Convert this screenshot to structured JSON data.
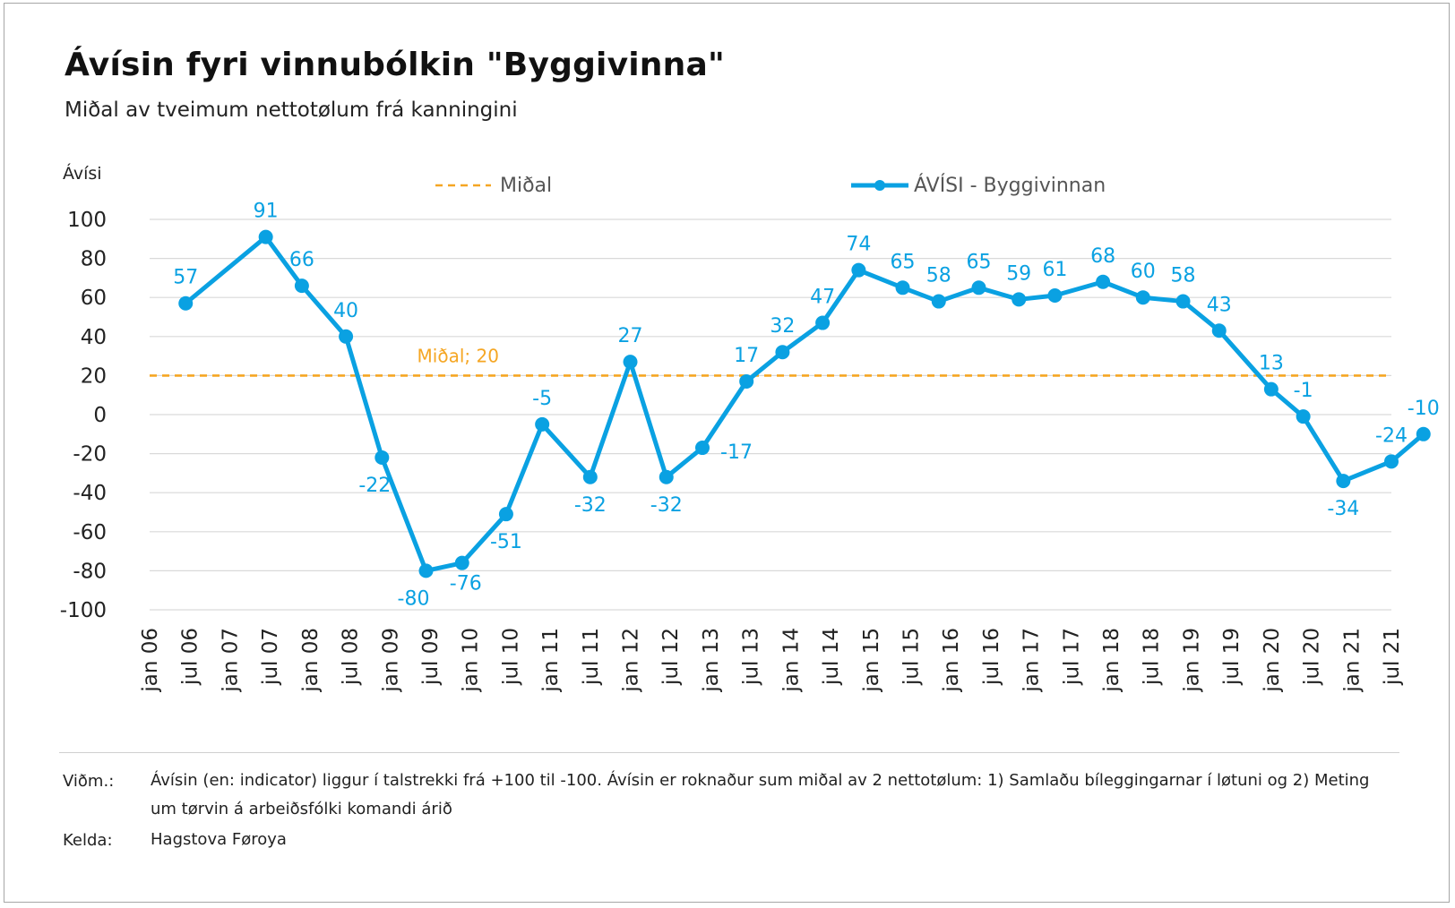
{
  "header": {
    "title": "Ávísin fyri vinnubólkin \"Byggivinna\"",
    "subtitle": "Miðal av tveimum nettotølum frá kanningini"
  },
  "chart_data": {
    "type": "line",
    "title": "Ávísin fyri vinnubólkin \"Byggivinna\"",
    "subtitle": "Miðal av tveimum nettotølum frá kanningini",
    "ylabel": "Ávísi",
    "xlabel": "",
    "ylim": [
      -100,
      100
    ],
    "yticks": [
      100,
      80,
      60,
      40,
      20,
      0,
      -20,
      -40,
      -60,
      -80,
      -100
    ],
    "grid": true,
    "legend_position": "top",
    "categories": [
      "jan 06",
      "jul 06",
      "jan 07",
      "jul 07",
      "jan 08",
      "jul 08",
      "jan 09",
      "jul 09",
      "jan 10",
      "jul 10",
      "jan 11",
      "jul 11",
      "jan 12",
      "jul 12",
      "jan 13",
      "jul 13",
      "jan 14",
      "jul 14",
      "jan 15",
      "jul 15",
      "jan 16",
      "jul 16",
      "jan 17",
      "jul 17",
      "jan 18",
      "jul 18",
      "jan 19",
      "jul 19",
      "jan 20",
      "jul 20",
      "jan 21",
      "jul 21"
    ],
    "series": [
      {
        "name": "ÁVÍSI - Byggivinnan",
        "color": "#0aa1e2",
        "x": [
          0.9,
          2.9,
          3.8,
          4.9,
          5.8,
          6.9,
          7.8,
          8.9,
          9.8,
          11.0,
          12.0,
          12.9,
          13.8,
          14.9,
          15.8,
          16.8,
          17.7,
          18.8,
          19.7,
          20.7,
          21.7,
          22.6,
          23.8,
          24.8,
          25.8,
          26.7,
          28.0,
          28.8,
          29.8,
          31.0,
          31.8
        ],
        "values": [
          57,
          91,
          66,
          40,
          -22,
          -80,
          -76,
          -51,
          -5,
          -32,
          27,
          -32,
          -17,
          17,
          32,
          47,
          74,
          65,
          58,
          65,
          59,
          61,
          68,
          60,
          58,
          43,
          13,
          -1,
          -34,
          -24,
          -10
        ]
      },
      {
        "name": "Miðal",
        "color": "#f5a623",
        "style": "dashed",
        "constant": 20,
        "annotation": "Miðal; 20"
      }
    ]
  },
  "footer": {
    "note_label": "Viðm.:",
    "note_line1": "Ávísin (en: indicator) liggur í talstrekki frá +100 til -100. Ávísin er roknaður sum miðal av 2 nettotølum: 1) Samlaðu bíleggingarnar í løtuni og 2) Meting",
    "note_line2": "um tørvin á arbeiðsfólki komandi árið",
    "source_label": "Kelda:",
    "source_text": "Hagstova Føroya"
  }
}
